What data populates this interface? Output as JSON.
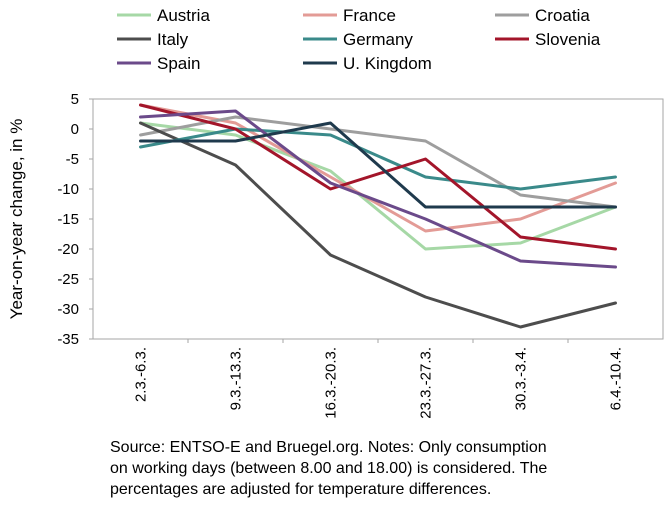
{
  "chart_data": {
    "type": "line",
    "title": "",
    "xlabel": "",
    "ylabel": "Year-on-year change, in %",
    "ylim": [
      -35,
      5
    ],
    "yticks": [
      5,
      0,
      -5,
      -10,
      -15,
      -20,
      -25,
      -30,
      -35
    ],
    "grid": false,
    "legend_position": "top",
    "categories": [
      "2.3.-6.3.",
      "9.3.-13.3.",
      "16.3.-20.3.",
      "23.3.-27.3.",
      "30.3.-3.4.",
      "6.4.-10.4."
    ],
    "series": [
      {
        "name": "Austria",
        "color": "#a6d8a6",
        "values": [
          1,
          -1,
          -7,
          -20,
          -19,
          -13
        ]
      },
      {
        "name": "France",
        "color": "#e39b96",
        "values": [
          4,
          1,
          -8,
          -17,
          -15,
          -9
        ]
      },
      {
        "name": "Croatia",
        "color": "#9e9e9e",
        "values": [
          -1,
          2,
          0,
          -2,
          -11,
          -13
        ]
      },
      {
        "name": "Italy",
        "color": "#4d4d4d",
        "values": [
          1,
          -6,
          -21,
          -28,
          -33,
          -29
        ]
      },
      {
        "name": "Germany",
        "color": "#3a8a8a",
        "values": [
          -3,
          0,
          -1,
          -8,
          -10,
          -8
        ]
      },
      {
        "name": "Slovenia",
        "color": "#a3152a",
        "values": [
          4,
          0,
          -10,
          -5,
          -18,
          -20
        ]
      },
      {
        "name": "Spain",
        "color": "#6b4a8a",
        "values": [
          2,
          3,
          -9,
          -15,
          -22,
          -23
        ]
      },
      {
        "name": "U. Kingdom",
        "color": "#1f3a4d",
        "values": [
          -2,
          -2,
          1,
          -13,
          -13,
          -13
        ]
      }
    ]
  },
  "note": {
    "line1": "Source: ENTSO-E and Bruegel.org. Notes: Only consumption",
    "line2": "on working days (between 8.00 and 18.00) is considered. The",
    "line3": "percentages are adjusted for temperature differences."
  }
}
